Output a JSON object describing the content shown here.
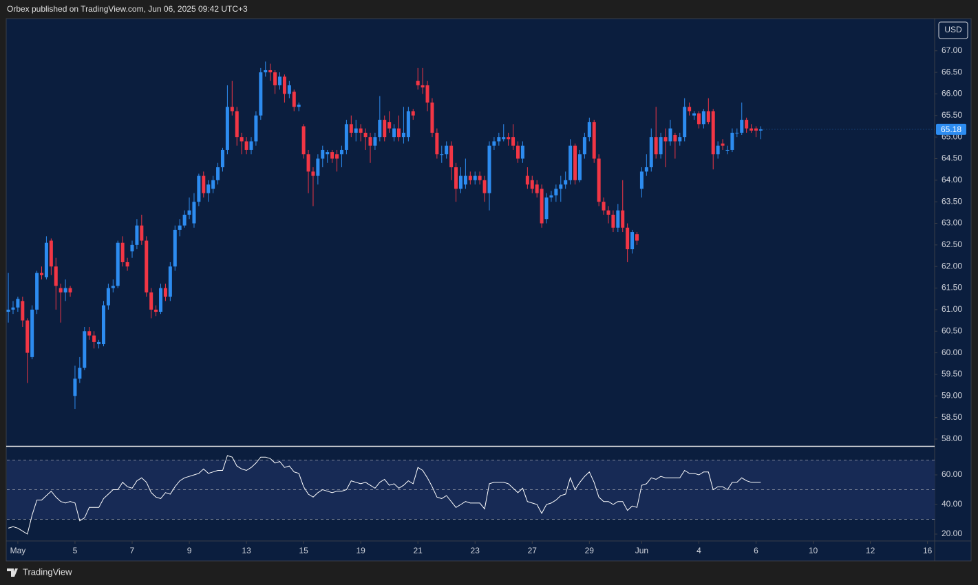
{
  "chart_data": {
    "type": "candlestick",
    "header": "Orbex published on TradingView.com, Jun 06, 2025 09:42 UTC+3",
    "currency": "USD",
    "footer": "TradingView",
    "up_color": "#2d8cf0",
    "down_color": "#f23645",
    "open": [
      60.95,
      61.0,
      61.05,
      61.2,
      60.75,
      59.9,
      61.0,
      61.85,
      61.75,
      62.6,
      62.0,
      61.5,
      61.4,
      61.5,
      59.0,
      59.4,
      59.65,
      60.5,
      60.4,
      60.2,
      60.2,
      61.1,
      61.5,
      61.55,
      62.55,
      62.1,
      62.35,
      62.5,
      62.95,
      62.6,
      61.4,
      61.0,
      60.95,
      61.5,
      61.3,
      62.0,
      62.85,
      62.95,
      63.2,
      63.0,
      63.5,
      64.1,
      63.7,
      63.8,
      64.0,
      64.3,
      64.7,
      65.7,
      65.6,
      65.0,
      64.9,
      64.7,
      64.9,
      65.5,
      66.5,
      66.55,
      66.5,
      66.2,
      66.4,
      66.0,
      66.05,
      65.7,
      65.25,
      64.6,
      64.2,
      64.1,
      64.5,
      64.6,
      64.65,
      64.6,
      64.6,
      64.7,
      65.3,
      65.1,
      65.2,
      65.1,
      65.0,
      64.8,
      65.0,
      65.4,
      65.35,
      65.0,
      65.2,
      65.0,
      65.0,
      65.6,
      66.3,
      66.2,
      66.2,
      65.8,
      65.1,
      64.6,
      64.6,
      64.8,
      64.3,
      63.8,
      63.9,
      64.1,
      64.0,
      64.1,
      64.0,
      63.7,
      64.8,
      64.9,
      64.95,
      65.0,
      65.0,
      64.8,
      64.5,
      64.1,
      64.0,
      63.9,
      63.8,
      63.1,
      63.6,
      63.65,
      63.8,
      63.9,
      64.0,
      64.8,
      64.0,
      64.6,
      65.0,
      65.35,
      64.5,
      63.5,
      63.3,
      63.2,
      62.9,
      63.3,
      62.9,
      62.4,
      62.75,
      63.8,
      64.2,
      64.3,
      65.0,
      64.6,
      65.0,
      64.9,
      65.05,
      64.9,
      65.0,
      65.7,
      65.5,
      65.55,
      65.3,
      65.6,
      65.6,
      64.6,
      64.85,
      64.7,
      64.7,
      65.1,
      65.1,
      65.4,
      65.2,
      65.2,
      65.15
    ],
    "high": [
      61.85,
      61.2,
      61.3,
      61.3,
      60.8,
      61.1,
      61.9,
      62.0,
      62.7,
      62.65,
      62.2,
      61.6,
      61.7,
      61.55,
      59.7,
      59.9,
      60.6,
      60.6,
      60.5,
      60.3,
      61.2,
      61.6,
      61.7,
      62.6,
      62.7,
      62.2,
      62.6,
      63.1,
      63.2,
      62.7,
      61.5,
      61.1,
      61.6,
      61.6,
      62.1,
      62.95,
      63.1,
      63.3,
      63.6,
      63.7,
      64.15,
      64.2,
      64.0,
      64.1,
      64.4,
      64.75,
      66.2,
      66.3,
      65.7,
      65.1,
      65.0,
      65.0,
      65.6,
      66.6,
      66.75,
      66.7,
      66.55,
      66.5,
      66.45,
      66.3,
      66.1,
      65.8,
      65.3,
      64.7,
      64.3,
      64.6,
      64.8,
      64.7,
      64.7,
      64.7,
      64.8,
      65.4,
      65.5,
      65.4,
      65.3,
      65.2,
      65.1,
      65.1,
      65.95,
      65.5,
      65.6,
      65.3,
      65.5,
      65.7,
      65.7,
      65.65,
      66.6,
      66.6,
      66.3,
      65.9,
      65.2,
      64.8,
      64.9,
      64.9,
      64.4,
      64.3,
      64.5,
      64.2,
      64.2,
      64.2,
      64.1,
      64.9,
      65.0,
      65.1,
      65.3,
      65.1,
      65.3,
      64.9,
      64.9,
      64.3,
      64.1,
      64.0,
      63.9,
      63.7,
      63.75,
      63.9,
      64.1,
      64.2,
      64.95,
      64.85,
      64.7,
      65.1,
      65.45,
      65.4,
      64.6,
      63.6,
      63.4,
      63.3,
      63.45,
      64.0,
      63.0,
      62.85,
      62.8,
      64.3,
      64.6,
      65.2,
      65.7,
      65.1,
      65.2,
      65.4,
      65.1,
      65.1,
      65.9,
      65.8,
      65.6,
      65.6,
      65.65,
      65.9,
      65.65,
      64.9,
      64.95,
      64.8,
      65.2,
      65.2,
      65.8,
      65.45,
      65.3,
      65.25,
      65.25
    ],
    "low": [
      60.7,
      60.9,
      60.95,
      60.6,
      59.3,
      59.85,
      60.9,
      61.7,
      61.7,
      61.8,
      61.0,
      60.7,
      61.2,
      61.3,
      58.7,
      59.3,
      59.6,
      60.3,
      60.1,
      60.1,
      60.15,
      61.0,
      61.4,
      61.5,
      62.0,
      61.9,
      62.2,
      62.4,
      62.5,
      61.3,
      60.8,
      60.85,
      60.9,
      61.2,
      61.2,
      61.9,
      62.7,
      62.9,
      63.1,
      62.9,
      63.4,
      63.6,
      63.5,
      63.7,
      63.9,
      64.2,
      64.6,
      65.5,
      64.8,
      64.6,
      64.6,
      64.6,
      64.8,
      65.4,
      66.4,
      66.3,
      66.0,
      66.1,
      65.8,
      65.9,
      65.6,
      65.6,
      64.5,
      63.7,
      63.4,
      63.9,
      64.3,
      64.4,
      64.4,
      64.2,
      64.3,
      64.6,
      65.0,
      64.9,
      64.9,
      64.7,
      64.4,
      64.7,
      64.9,
      64.9,
      65.1,
      64.9,
      64.9,
      64.85,
      64.9,
      65.4,
      66.1,
      66.0,
      65.6,
      65.0,
      64.5,
      64.4,
      64.5,
      64.0,
      63.5,
      63.7,
      63.8,
      63.9,
      63.9,
      63.9,
      63.5,
      63.3,
      64.7,
      64.8,
      64.9,
      64.8,
      64.7,
      64.4,
      64.4,
      63.8,
      63.7,
      63.6,
      62.9,
      63.0,
      63.5,
      63.5,
      63.5,
      63.8,
      63.9,
      63.9,
      63.95,
      64.5,
      64.9,
      64.4,
      63.4,
      63.2,
      63.0,
      62.8,
      62.8,
      62.8,
      62.1,
      62.3,
      62.5,
      63.6,
      64.1,
      64.2,
      64.5,
      64.5,
      64.3,
      64.8,
      64.5,
      64.8,
      64.9,
      65.5,
      65.4,
      65.2,
      65.2,
      65.3,
      64.25,
      64.5,
      64.7,
      64.6,
      64.65,
      65.0,
      65.05,
      65.1,
      65.1,
      65.0,
      64.95
    ],
    "close": [
      61.0,
      61.05,
      61.25,
      60.75,
      60.0,
      61.0,
      61.85,
      61.8,
      62.55,
      62.0,
      61.55,
      61.4,
      61.5,
      61.4,
      59.4,
      59.65,
      60.5,
      60.4,
      60.25,
      60.25,
      61.1,
      61.5,
      61.55,
      62.55,
      62.1,
      62.0,
      62.5,
      62.95,
      62.6,
      61.4,
      61.0,
      60.95,
      61.5,
      61.3,
      62.0,
      62.85,
      62.95,
      63.2,
      63.3,
      63.5,
      64.1,
      63.7,
      63.9,
      64.0,
      64.3,
      64.7,
      65.7,
      65.6,
      65.0,
      64.9,
      64.7,
      64.9,
      65.5,
      66.5,
      66.55,
      66.5,
      66.2,
      66.4,
      66.0,
      66.2,
      65.7,
      65.75,
      64.6,
      64.2,
      64.1,
      64.5,
      64.7,
      64.65,
      64.5,
      64.5,
      64.7,
      65.3,
      65.1,
      65.2,
      65.1,
      65.0,
      64.8,
      65.0,
      65.4,
      65.0,
      65.2,
      65.2,
      65.0,
      65.1,
      65.6,
      65.5,
      66.2,
      66.15,
      65.8,
      65.1,
      64.6,
      64.6,
      64.8,
      64.3,
      63.8,
      64.1,
      64.1,
      64.0,
      64.1,
      64.0,
      63.7,
      64.8,
      64.9,
      65.0,
      65.0,
      64.95,
      64.8,
      64.5,
      64.8,
      63.9,
      63.8,
      63.7,
      63.0,
      63.6,
      63.65,
      63.8,
      63.9,
      64.0,
      64.8,
      64.0,
      64.6,
      65.0,
      65.35,
      64.5,
      63.5,
      63.3,
      63.2,
      62.9,
      63.3,
      62.9,
      62.4,
      62.8,
      62.6,
      64.2,
      64.3,
      65.0,
      64.6,
      65.0,
      64.9,
      65.2,
      64.9,
      65.0,
      65.7,
      65.6,
      65.55,
      65.3,
      65.6,
      65.35,
      64.6,
      64.8,
      64.8,
      64.7,
      65.1,
      65.1,
      65.4,
      65.2,
      65.15,
      65.15,
      65.18
    ],
    "xlim": [
      -0.3,
      194.5
    ],
    "xticks": [
      {
        "value": 2,
        "label": "May"
      },
      {
        "value": 14,
        "label": "5"
      },
      {
        "value": 26,
        "label": "7"
      },
      {
        "value": 38,
        "label": "9"
      },
      {
        "value": 50,
        "label": "13"
      },
      {
        "value": 62,
        "label": "15"
      },
      {
        "value": 74,
        "label": "19"
      },
      {
        "value": 86,
        "label": "21"
      },
      {
        "value": 98,
        "label": "23"
      },
      {
        "value": 110,
        "label": "27"
      },
      {
        "value": 122,
        "label": "29"
      },
      {
        "value": 133,
        "label": "Jun"
      },
      {
        "value": 145,
        "label": "4"
      },
      {
        "value": 157,
        "label": "6"
      },
      {
        "value": 169,
        "label": "10"
      },
      {
        "value": 181,
        "label": "12"
      },
      {
        "value": 193,
        "label": "16"
      }
    ],
    "ylim": [
      57.84,
      67.73
    ],
    "yticks": [
      {
        "value": 58,
        "label": "58.00"
      },
      {
        "value": 58.5,
        "label": "58.50"
      },
      {
        "value": 59,
        "label": "59.00"
      },
      {
        "value": 59.5,
        "label": "59.50"
      },
      {
        "value": 60,
        "label": "60.00"
      },
      {
        "value": 60.5,
        "label": "60.50"
      },
      {
        "value": 61,
        "label": "61.00"
      },
      {
        "value": 61.5,
        "label": "61.50"
      },
      {
        "value": 62,
        "label": "62.00"
      },
      {
        "value": 62.5,
        "label": "62.50"
      },
      {
        "value": 63,
        "label": "63.00"
      },
      {
        "value": 63.5,
        "label": "63.50"
      },
      {
        "value": 64,
        "label": "64.00"
      },
      {
        "value": 64.5,
        "label": "64.50"
      },
      {
        "value": 65,
        "label": "65.00"
      },
      {
        "value": 65.5,
        "label": "65.50"
      },
      {
        "value": 66,
        "label": "66.00"
      },
      {
        "value": 66.5,
        "label": "66.50"
      },
      {
        "value": 67,
        "label": "67.00"
      }
    ],
    "rsi": {
      "color": "#ffffff",
      "band_color": "#172a55",
      "ylim": [
        13.5,
        78.6
      ],
      "yticks": [
        {
          "value": 20,
          "label": "20.00"
        },
        {
          "value": 40,
          "label": "40.00"
        },
        {
          "value": 60,
          "label": "60.00"
        }
      ],
      "levels": [
        30,
        50,
        70
      ],
      "values": [
        24,
        25,
        24,
        22,
        20,
        33,
        43,
        43,
        46,
        49,
        45,
        42,
        41,
        42,
        41,
        29,
        31,
        38,
        38,
        38,
        44,
        47,
        50,
        50,
        55,
        52,
        51,
        56,
        58,
        55,
        48,
        45,
        44,
        48,
        47,
        52,
        56,
        58,
        59,
        60,
        61,
        64,
        61,
        62,
        63,
        63,
        73,
        72,
        66,
        64,
        63,
        65,
        68,
        72,
        72,
        71,
        68,
        69,
        65,
        66,
        62,
        61,
        52,
        47,
        45,
        48,
        50,
        49,
        48,
        49,
        49,
        50,
        56,
        55,
        54,
        55,
        53,
        51,
        55,
        57,
        53,
        54,
        51,
        53,
        56,
        54,
        65,
        63,
        58,
        52,
        45,
        44,
        46,
        42,
        38,
        40,
        42,
        41,
        41,
        41,
        37,
        54,
        55,
        55,
        55,
        54,
        51,
        48,
        51,
        42,
        41,
        40,
        34,
        40,
        41,
        43,
        46,
        47,
        58,
        50,
        55,
        59,
        62,
        55,
        45,
        42,
        42,
        40,
        42,
        42,
        36,
        39,
        38,
        53,
        54,
        58,
        57,
        59,
        58,
        58,
        58,
        58,
        63,
        61,
        61,
        60,
        62,
        62,
        50,
        52,
        52,
        50,
        55,
        55,
        58,
        56,
        55,
        55,
        55
      ]
    }
  }
}
